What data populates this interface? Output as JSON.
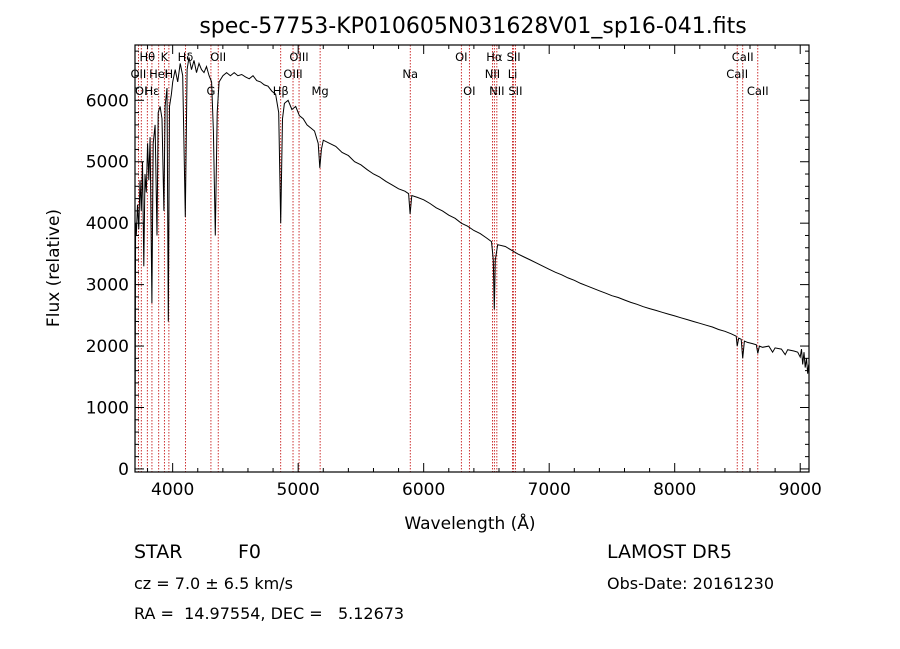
{
  "chart_data": {
    "type": "line",
    "title": "spec-57753-KP010605N031628V01_sp16-041.fits",
    "xlabel": "Wavelength (Å)",
    "ylabel": "Flux (relative)",
    "xlim": [
      3700,
      9070
    ],
    "ylim": [
      -50,
      6900
    ],
    "x_ticks": [
      4000,
      5000,
      6000,
      7000,
      8000,
      9000
    ],
    "y_ticks": [
      0,
      1000,
      2000,
      3000,
      4000,
      5000,
      6000
    ],
    "grid": false,
    "series": [
      {
        "points": [
          [
            3700,
            0
          ],
          [
            3705,
            4000
          ],
          [
            3710,
            3800
          ],
          [
            3720,
            4300
          ],
          [
            3730,
            3900
          ],
          [
            3740,
            4700
          ],
          [
            3750,
            4200
          ],
          [
            3760,
            5000
          ],
          [
            3770,
            3300
          ],
          [
            3780,
            4800
          ],
          [
            3790,
            4500
          ],
          [
            3800,
            5300
          ],
          [
            3810,
            4700
          ],
          [
            3820,
            5400
          ],
          [
            3835,
            2700
          ],
          [
            3845,
            5300
          ],
          [
            3860,
            5600
          ],
          [
            3875,
            3800
          ],
          [
            3885,
            5800
          ],
          [
            3900,
            5900
          ],
          [
            3915,
            5700
          ],
          [
            3930,
            4200
          ],
          [
            3940,
            5900
          ],
          [
            3955,
            6200
          ],
          [
            3965,
            2400
          ],
          [
            3975,
            5900
          ],
          [
            3990,
            6100
          ],
          [
            4000,
            6300
          ],
          [
            4020,
            6500
          ],
          [
            4040,
            6300
          ],
          [
            4060,
            6600
          ],
          [
            4080,
            6400
          ],
          [
            4101,
            4100
          ],
          [
            4115,
            6500
          ],
          [
            4130,
            6700
          ],
          [
            4150,
            6500
          ],
          [
            4170,
            6650
          ],
          [
            4190,
            6450
          ],
          [
            4210,
            6600
          ],
          [
            4230,
            6500
          ],
          [
            4250,
            6450
          ],
          [
            4270,
            6550
          ],
          [
            4290,
            6400
          ],
          [
            4310,
            6300
          ],
          [
            4325,
            5500
          ],
          [
            4340,
            3800
          ],
          [
            4355,
            5800
          ],
          [
            4370,
            6300
          ],
          [
            4400,
            6400
          ],
          [
            4430,
            6450
          ],
          [
            4460,
            6400
          ],
          [
            4490,
            6450
          ],
          [
            4520,
            6400
          ],
          [
            4550,
            6420
          ],
          [
            4580,
            6380
          ],
          [
            4610,
            6350
          ],
          [
            4640,
            6400
          ],
          [
            4670,
            6320
          ],
          [
            4700,
            6300
          ],
          [
            4730,
            6250
          ],
          [
            4760,
            6230
          ],
          [
            4790,
            6150
          ],
          [
            4820,
            6100
          ],
          [
            4845,
            5800
          ],
          [
            4861,
            4000
          ],
          [
            4875,
            5700
          ],
          [
            4890,
            5950
          ],
          [
            4920,
            6000
          ],
          [
            4950,
            5850
          ],
          [
            4980,
            5900
          ],
          [
            5010,
            5750
          ],
          [
            5040,
            5700
          ],
          [
            5070,
            5600
          ],
          [
            5100,
            5550
          ],
          [
            5130,
            5500
          ],
          [
            5160,
            5300
          ],
          [
            5172,
            4900
          ],
          [
            5185,
            5200
          ],
          [
            5200,
            5350
          ],
          [
            5250,
            5300
          ],
          [
            5300,
            5250
          ],
          [
            5350,
            5150
          ],
          [
            5400,
            5100
          ],
          [
            5450,
            5000
          ],
          [
            5500,
            4950
          ],
          [
            5550,
            4870
          ],
          [
            5600,
            4800
          ],
          [
            5650,
            4750
          ],
          [
            5700,
            4680
          ],
          [
            5750,
            4620
          ],
          [
            5800,
            4560
          ],
          [
            5850,
            4520
          ],
          [
            5880,
            4480
          ],
          [
            5892,
            4150
          ],
          [
            5905,
            4450
          ],
          [
            5950,
            4420
          ],
          [
            6000,
            4380
          ],
          [
            6050,
            4320
          ],
          [
            6100,
            4250
          ],
          [
            6150,
            4200
          ],
          [
            6200,
            4130
          ],
          [
            6250,
            4080
          ],
          [
            6300,
            4000
          ],
          [
            6350,
            3950
          ],
          [
            6400,
            3880
          ],
          [
            6450,
            3830
          ],
          [
            6500,
            3760
          ],
          [
            6540,
            3700
          ],
          [
            6555,
            3400
          ],
          [
            6563,
            2600
          ],
          [
            6571,
            3400
          ],
          [
            6590,
            3650
          ],
          [
            6650,
            3620
          ],
          [
            6700,
            3560
          ],
          [
            6750,
            3500
          ],
          [
            6800,
            3450
          ],
          [
            6850,
            3400
          ],
          [
            6900,
            3350
          ],
          [
            6950,
            3300
          ],
          [
            7000,
            3250
          ],
          [
            7050,
            3200
          ],
          [
            7100,
            3160
          ],
          [
            7150,
            3110
          ],
          [
            7200,
            3070
          ],
          [
            7250,
            3020
          ],
          [
            7300,
            2980
          ],
          [
            7350,
            2940
          ],
          [
            7400,
            2900
          ],
          [
            7450,
            2860
          ],
          [
            7500,
            2820
          ],
          [
            7550,
            2790
          ],
          [
            7600,
            2750
          ],
          [
            7650,
            2710
          ],
          [
            7700,
            2680
          ],
          [
            7750,
            2640
          ],
          [
            7800,
            2610
          ],
          [
            7850,
            2580
          ],
          [
            7900,
            2550
          ],
          [
            7950,
            2520
          ],
          [
            8000,
            2490
          ],
          [
            8050,
            2460
          ],
          [
            8100,
            2430
          ],
          [
            8150,
            2400
          ],
          [
            8200,
            2370
          ],
          [
            8250,
            2340
          ],
          [
            8300,
            2310
          ],
          [
            8350,
            2270
          ],
          [
            8400,
            2240
          ],
          [
            8450,
            2200
          ],
          [
            8490,
            2160
          ],
          [
            8498,
            2000
          ],
          [
            8510,
            2130
          ],
          [
            8530,
            2110
          ],
          [
            8542,
            1800
          ],
          [
            8555,
            2080
          ],
          [
            8580,
            2060
          ],
          [
            8620,
            2040
          ],
          [
            8650,
            2020
          ],
          [
            8662,
            1880
          ],
          [
            8675,
            2000
          ],
          [
            8700,
            1980
          ],
          [
            8750,
            2000
          ],
          [
            8780,
            1900
          ],
          [
            8800,
            1970
          ],
          [
            8850,
            1950
          ],
          [
            8880,
            1860
          ],
          [
            8900,
            1940
          ],
          [
            8950,
            1920
          ],
          [
            8980,
            1900
          ],
          [
            9000,
            1820
          ],
          [
            9010,
            1950
          ],
          [
            9020,
            1700
          ],
          [
            9030,
            1900
          ],
          [
            9040,
            1650
          ],
          [
            9050,
            1800
          ],
          [
            9060,
            1550
          ],
          [
            9068,
            1700
          ]
        ]
      }
    ],
    "spectral_lines": [
      {
        "label": "Hθ",
        "wavelength": 3798,
        "row": 0
      },
      {
        "label": "K",
        "wavelength": 3934,
        "row": 0
      },
      {
        "label": "Hδ",
        "wavelength": 4102,
        "row": 0
      },
      {
        "label": "OII",
        "wavelength": 4363,
        "row": 0
      },
      {
        "label": "OIII",
        "wavelength": 5007,
        "row": 0
      },
      {
        "label": "OI",
        "wavelength": 6300,
        "row": 0
      },
      {
        "label": "Hα",
        "wavelength": 6563,
        "row": 0
      },
      {
        "label": "SII",
        "wavelength": 6717,
        "row": 0
      },
      {
        "label": "CaII",
        "wavelength": 8542,
        "row": 0
      },
      {
        "label": "OII",
        "wavelength": 3727,
        "row": 1
      },
      {
        "label": "HeI",
        "wavelength": 3889,
        "row": 1
      },
      {
        "label": "H",
        "wavelength": 3970,
        "row": 1
      },
      {
        "label": "OIII",
        "wavelength": 4959,
        "row": 1
      },
      {
        "label": "Na",
        "wavelength": 5893,
        "row": 1
      },
      {
        "label": "NII",
        "wavelength": 6548,
        "row": 1
      },
      {
        "label": "Li",
        "wavelength": 6708,
        "row": 1
      },
      {
        "label": "CaII",
        "wavelength": 8498,
        "row": 1
      },
      {
        "label": "OI",
        "wavelength": 3750,
        "row": 2
      },
      {
        "label": "Hε",
        "wavelength": 3835,
        "row": 2
      },
      {
        "label": "G",
        "wavelength": 4305,
        "row": 2
      },
      {
        "label": "Hβ",
        "wavelength": 4861,
        "row": 2
      },
      {
        "label": "Mg",
        "wavelength": 5175,
        "row": 2
      },
      {
        "label": "OI",
        "wavelength": 6364,
        "row": 2
      },
      {
        "label": "NII",
        "wavelength": 6583,
        "row": 2
      },
      {
        "label": "SII",
        "wavelength": 6731,
        "row": 2
      },
      {
        "label": "CaII",
        "wavelength": 8662,
        "row": 2
      }
    ]
  },
  "info": {
    "class_label": "STAR",
    "subclass": "F0",
    "survey": "LAMOST DR5",
    "cz_text": "cz = 7.0 ± 6.5 km/s",
    "obs_date": "Obs-Date: 20161230",
    "coords": "RA =  14.97554, DEC =   5.12673"
  }
}
